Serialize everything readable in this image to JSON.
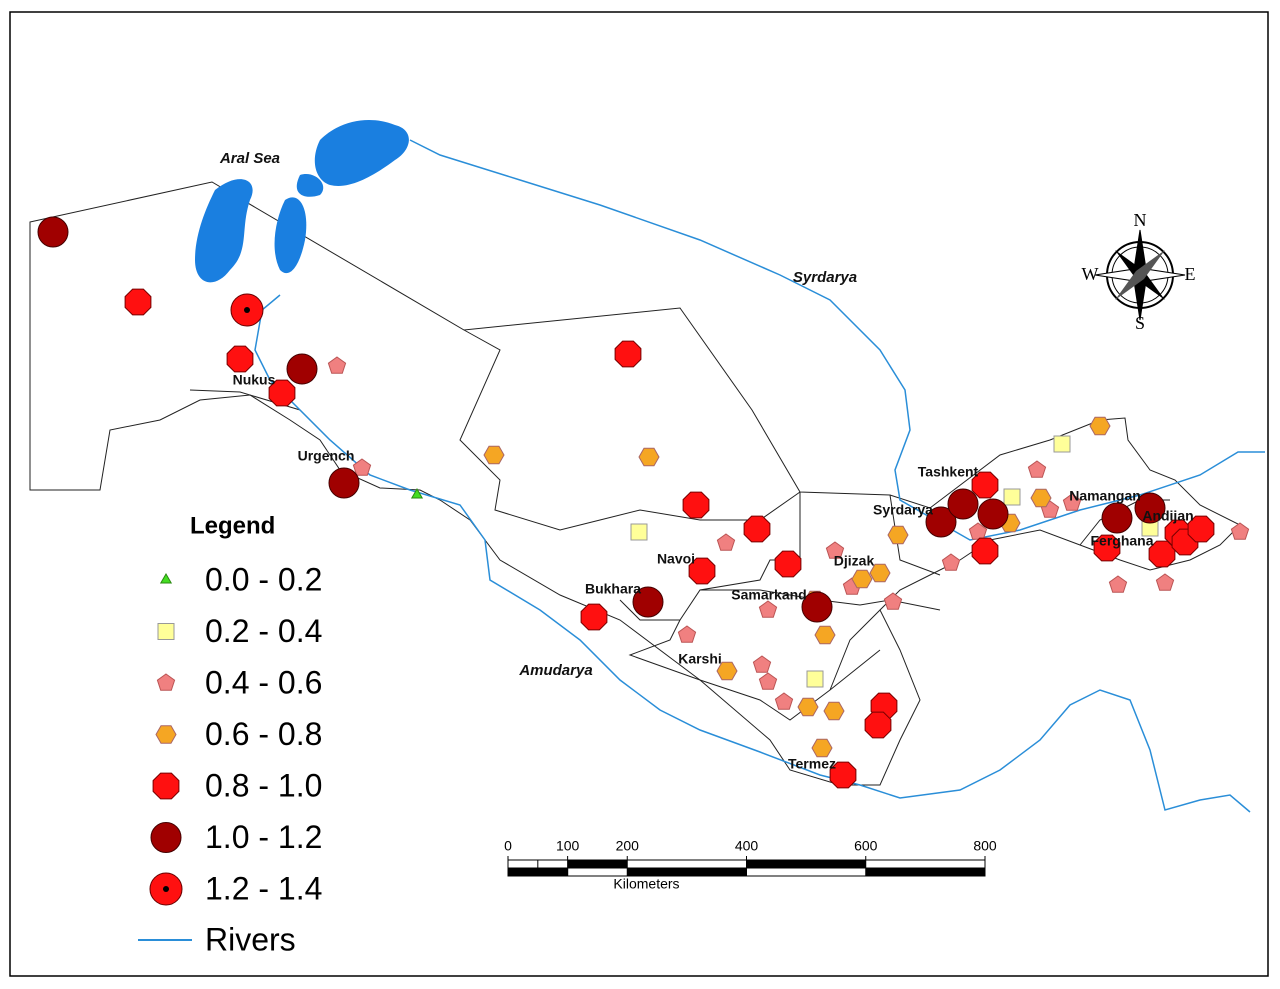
{
  "map": {
    "water_labels": [
      "Aral Sea",
      "Syrdarya",
      "Amudarya"
    ],
    "places": [
      "Nukus",
      "Urgench",
      "Tashkent",
      "Syrdarya",
      "Namangan",
      "Andijan",
      "Ferghana",
      "Djizak",
      "Samarkand",
      "Navoi",
      "Bukhara",
      "Karshi",
      "Termez"
    ],
    "legend": {
      "title": "Legend",
      "classes": [
        "0.0 - 0.2",
        "0.2 - 0.4",
        "0.4 - 0.6",
        "0.6 - 0.8",
        "0.8 - 1.0",
        "1.0 - 1.2",
        "1.2 - 1.4"
      ],
      "rivers": "Rivers"
    },
    "scale_bar": {
      "ticks": [
        0,
        100,
        200,
        400,
        600,
        800
      ],
      "unit": "Kilometers"
    },
    "compass": {
      "n": "N",
      "s": "S",
      "e": "E",
      "w": "W"
    }
  }
}
